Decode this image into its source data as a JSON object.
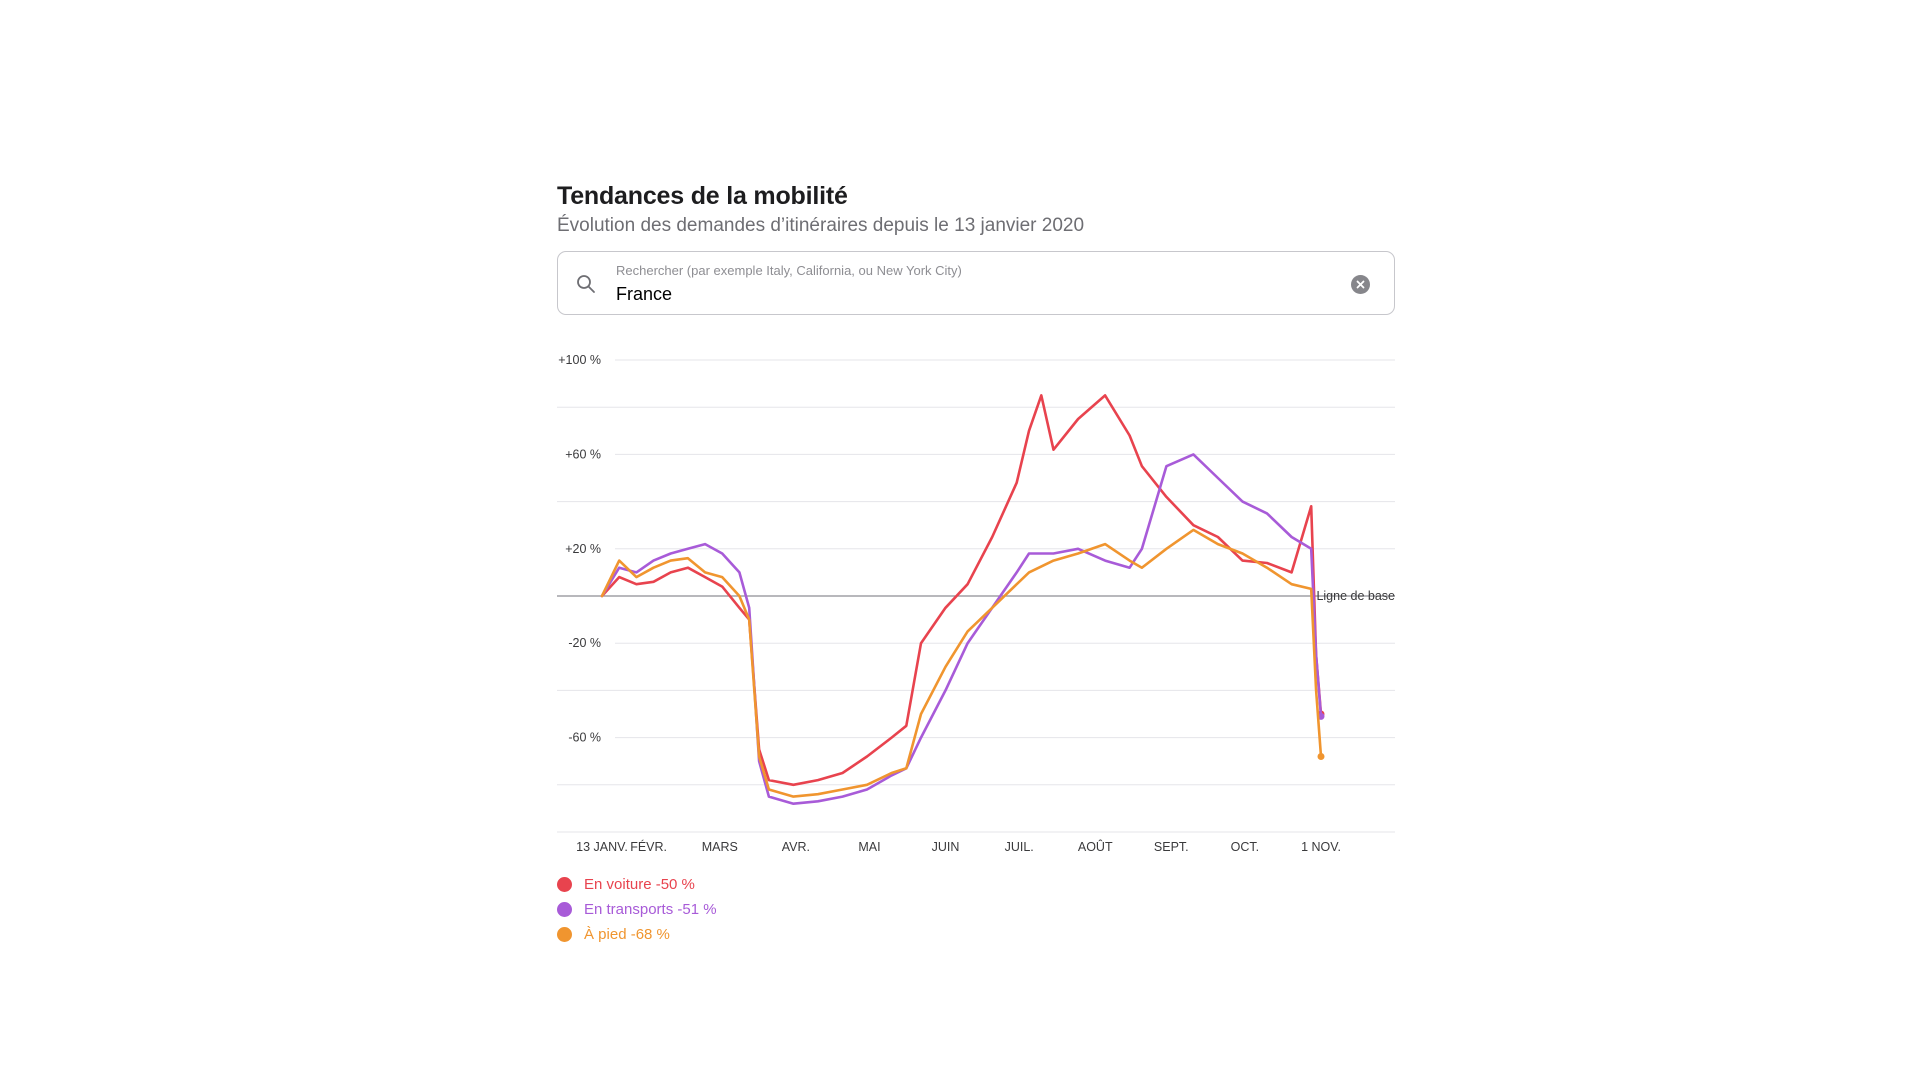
{
  "header": {
    "title": "Tendances de la mobilité",
    "subtitle": "Évolution des demandes d’itinéraires depuis le 13 janvier 2020"
  },
  "search": {
    "placeholder": "Rechercher (par exemple Italy, California, ou New York City)",
    "value": "France",
    "icon": "search-icon",
    "clear_icon": "clear-icon"
  },
  "chart_data": {
    "type": "line",
    "ylim": [
      -100,
      100
    ],
    "y_ticks": [
      "+100 %",
      "+60 %",
      "+20 %",
      "-20 %",
      "-60 %"
    ],
    "y_tick_values": [
      100,
      60,
      20,
      -20,
      -60
    ],
    "baseline_label": "Ligne de base",
    "x_ticks": [
      "13 JANV.",
      "FÉVR.",
      "MARS",
      "AVR.",
      "MAI",
      "JUIN",
      "JUIL.",
      "AOÛT",
      "SEPT.",
      "OCT.",
      "1 NOV."
    ],
    "x_tick_dates": [
      "2020-01-13",
      "2020-02-01",
      "2020-03-01",
      "2020-04-01",
      "2020-05-01",
      "2020-06-01",
      "2020-07-01",
      "2020-08-01",
      "2020-09-01",
      "2020-10-01",
      "2020-11-01"
    ],
    "x_range": [
      "2020-01-13",
      "2020-11-01"
    ],
    "grid": true,
    "legend_position": "bottom-left",
    "series": [
      {
        "name": "En voiture -50 %",
        "color": "#e8434e",
        "points": [
          [
            "2020-01-13",
            0
          ],
          [
            "2020-01-20",
            8
          ],
          [
            "2020-01-27",
            5
          ],
          [
            "2020-02-03",
            6
          ],
          [
            "2020-02-10",
            10
          ],
          [
            "2020-02-17",
            12
          ],
          [
            "2020-02-24",
            8
          ],
          [
            "2020-03-02",
            4
          ],
          [
            "2020-03-09",
            -5
          ],
          [
            "2020-03-13",
            -10
          ],
          [
            "2020-03-17",
            -65
          ],
          [
            "2020-03-21",
            -78
          ],
          [
            "2020-03-31",
            -80
          ],
          [
            "2020-04-10",
            -78
          ],
          [
            "2020-04-20",
            -75
          ],
          [
            "2020-04-30",
            -68
          ],
          [
            "2020-05-10",
            -60
          ],
          [
            "2020-05-16",
            -55
          ],
          [
            "2020-05-22",
            -20
          ],
          [
            "2020-06-01",
            -5
          ],
          [
            "2020-06-10",
            5
          ],
          [
            "2020-06-20",
            25
          ],
          [
            "2020-06-30",
            48
          ],
          [
            "2020-07-05",
            70
          ],
          [
            "2020-07-10",
            85
          ],
          [
            "2020-07-15",
            62
          ],
          [
            "2020-07-25",
            75
          ],
          [
            "2020-08-05",
            85
          ],
          [
            "2020-08-15",
            68
          ],
          [
            "2020-08-20",
            55
          ],
          [
            "2020-08-30",
            42
          ],
          [
            "2020-09-10",
            30
          ],
          [
            "2020-09-20",
            25
          ],
          [
            "2020-09-30",
            15
          ],
          [
            "2020-10-10",
            14
          ],
          [
            "2020-10-20",
            10
          ],
          [
            "2020-10-28",
            38
          ],
          [
            "2020-10-30",
            -25
          ],
          [
            "2020-11-01",
            -50
          ]
        ]
      },
      {
        "name": "En transports -51 %",
        "color": "#a85bd8",
        "points": [
          [
            "2020-01-13",
            0
          ],
          [
            "2020-01-20",
            12
          ],
          [
            "2020-01-27",
            10
          ],
          [
            "2020-02-03",
            15
          ],
          [
            "2020-02-10",
            18
          ],
          [
            "2020-02-17",
            20
          ],
          [
            "2020-02-24",
            22
          ],
          [
            "2020-03-02",
            18
          ],
          [
            "2020-03-09",
            10
          ],
          [
            "2020-03-13",
            -5
          ],
          [
            "2020-03-17",
            -70
          ],
          [
            "2020-03-21",
            -85
          ],
          [
            "2020-03-31",
            -88
          ],
          [
            "2020-04-10",
            -87
          ],
          [
            "2020-04-20",
            -85
          ],
          [
            "2020-04-30",
            -82
          ],
          [
            "2020-05-10",
            -76
          ],
          [
            "2020-05-16",
            -73
          ],
          [
            "2020-05-22",
            -60
          ],
          [
            "2020-06-01",
            -40
          ],
          [
            "2020-06-10",
            -20
          ],
          [
            "2020-06-20",
            -5
          ],
          [
            "2020-06-30",
            10
          ],
          [
            "2020-07-05",
            18
          ],
          [
            "2020-07-15",
            18
          ],
          [
            "2020-07-25",
            20
          ],
          [
            "2020-08-05",
            15
          ],
          [
            "2020-08-15",
            12
          ],
          [
            "2020-08-20",
            20
          ],
          [
            "2020-08-30",
            55
          ],
          [
            "2020-09-10",
            60
          ],
          [
            "2020-09-20",
            50
          ],
          [
            "2020-09-30",
            40
          ],
          [
            "2020-10-10",
            35
          ],
          [
            "2020-10-20",
            25
          ],
          [
            "2020-10-28",
            20
          ],
          [
            "2020-10-30",
            -25
          ],
          [
            "2020-11-01",
            -51
          ]
        ]
      },
      {
        "name": "À pied -68 %",
        "color": "#f0952f",
        "points": [
          [
            "2020-01-13",
            0
          ],
          [
            "2020-01-20",
            15
          ],
          [
            "2020-01-27",
            8
          ],
          [
            "2020-02-03",
            12
          ],
          [
            "2020-02-10",
            15
          ],
          [
            "2020-02-17",
            16
          ],
          [
            "2020-02-24",
            10
          ],
          [
            "2020-03-02",
            8
          ],
          [
            "2020-03-09",
            0
          ],
          [
            "2020-03-13",
            -10
          ],
          [
            "2020-03-17",
            -68
          ],
          [
            "2020-03-21",
            -82
          ],
          [
            "2020-03-31",
            -85
          ],
          [
            "2020-04-10",
            -84
          ],
          [
            "2020-04-20",
            -82
          ],
          [
            "2020-04-30",
            -80
          ],
          [
            "2020-05-10",
            -75
          ],
          [
            "2020-05-16",
            -73
          ],
          [
            "2020-05-22",
            -50
          ],
          [
            "2020-06-01",
            -30
          ],
          [
            "2020-06-10",
            -15
          ],
          [
            "2020-06-20",
            -5
          ],
          [
            "2020-06-30",
            5
          ],
          [
            "2020-07-05",
            10
          ],
          [
            "2020-07-15",
            15
          ],
          [
            "2020-07-25",
            18
          ],
          [
            "2020-08-05",
            22
          ],
          [
            "2020-08-15",
            15
          ],
          [
            "2020-08-20",
            12
          ],
          [
            "2020-08-30",
            20
          ],
          [
            "2020-09-10",
            28
          ],
          [
            "2020-09-20",
            22
          ],
          [
            "2020-09-30",
            18
          ],
          [
            "2020-10-10",
            12
          ],
          [
            "2020-10-20",
            5
          ],
          [
            "2020-10-28",
            3
          ],
          [
            "2020-10-30",
            -40
          ],
          [
            "2020-11-01",
            -68
          ]
        ]
      }
    ]
  },
  "legend": [
    {
      "label": "En voiture -50 %",
      "color": "#e8434e"
    },
    {
      "label": "En transports -51 %",
      "color": "#a85bd8"
    },
    {
      "label": "À pied -68 %",
      "color": "#f0952f"
    }
  ]
}
